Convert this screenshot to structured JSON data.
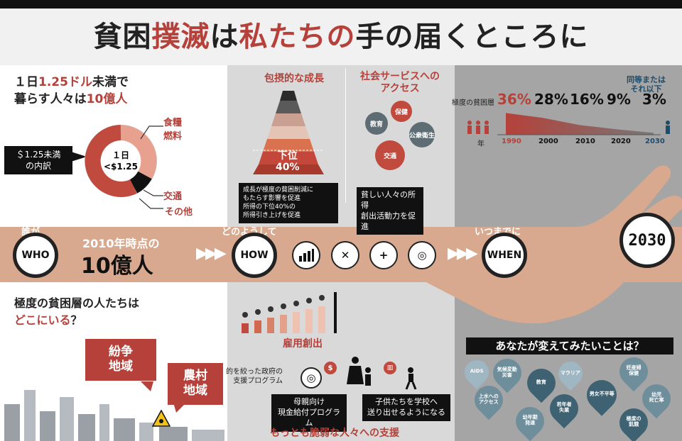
{
  "title": {
    "p1": "貧困",
    "p2": "撲滅",
    "p3": "は",
    "p4": "私たちの",
    "p5": "手の届くところに"
  },
  "left": {
    "heading_l1_a": "１日",
    "heading_l1_b": "1.25ドル",
    "heading_l1_c": "未満で",
    "heading_l2_a": "暮らす人々は",
    "heading_l2_b": "10億人",
    "breakdown_label": "＄1.25未満\nの内訳",
    "donut_center": "１日\n<$1.25",
    "legend": [
      "食糧",
      "燃料",
      "交通",
      "その他"
    ],
    "where_l1": "極度の貧困層の人たちは",
    "where_l2_a": "どこにいる",
    "where_l2_b": "？",
    "bubble1": "紛争\n地域",
    "bubble2": "農村\n地域"
  },
  "band": {
    "who_caption": "誰が",
    "who": "WHO",
    "year_label": "2010年時点の",
    "count": "10億人",
    "how_caption": "どのようして",
    "how": "HOW",
    "when_caption": "いつまでに",
    "when": "WHEN",
    "year_badge": "2030"
  },
  "middle": {
    "inclusive_title": "包摂的な成長",
    "pyramid_label_a": "下位",
    "pyramid_label_b": "40%",
    "inclusive_note": "成長が極度の貧困削減に\nもたらす影響を促進\n所得の下位40%の\n所得引き上げを促進",
    "social_title": "社会サービスへの\nアクセス",
    "services": [
      "保健",
      "教育",
      "公衆衛生",
      "交通"
    ],
    "social_note": "貧しい人々の所得\n創出活動力を促進",
    "jobs_title": "雇用創出",
    "targeted": "的を絞った政府の\n支援プログラム",
    "cash_transfer": "母親向け\n現金給付プログラム",
    "school": "子供たちを学校へ\n送り出せるようになる",
    "vulnerable_title": "もっとも脆弱な人々への支援"
  },
  "right": {
    "extreme_label": "極度の貧困層",
    "equal_label": "同等または\nそれ以下",
    "year_label": "年",
    "percents": [
      "36%",
      "28%",
      "16%",
      "9%",
      "3%"
    ],
    "years": [
      "1990",
      "2000",
      "2010",
      "2020",
      "2030"
    ],
    "question": "あなたが変えてみたいことは？",
    "pins": [
      "AIDS",
      "気候変動\n災害",
      "教育",
      "マラリア",
      "妊産婦\n保健",
      "上水への\nアクセス",
      "若年者\n失業",
      "男女不平等",
      "幼児\n死亡率",
      "幼年期\n発達",
      "極度の\n飢餓"
    ]
  },
  "colors": {
    "accent": "#b5413a",
    "band": "#d8a98e",
    "dark": "#111111"
  },
  "chart_data": {
    "type": "area",
    "x": [
      1990,
      2000,
      2010,
      2020,
      2030
    ],
    "values": [
      36,
      28,
      16,
      9,
      3
    ],
    "ylabel": "極度の貧困層"
  }
}
